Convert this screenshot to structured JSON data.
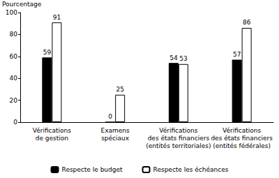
{
  "chart_data": {
    "type": "bar",
    "y_label": "Pourcentage",
    "categories": [
      "Vérifications\nde gestion",
      "Examens\nspéciaux",
      "Vérifications\ndes états financiers\n(entités territoriales)",
      "Vérifications\ndes états financiers\n(entités fédérales)"
    ],
    "series": [
      {
        "name": "Respecte le budget",
        "color": "#000000",
        "values": [
          59,
          0,
          54,
          57
        ]
      },
      {
        "name": "Respecte les échéances",
        "color": "#ffffff",
        "values": [
          91,
          25,
          53,
          86
        ]
      }
    ],
    "ylim": [
      0,
      100
    ],
    "yticks": [
      0,
      20,
      40,
      60,
      80,
      100
    ],
    "grid": false,
    "legend": "bottom",
    "data_labels": true
  }
}
